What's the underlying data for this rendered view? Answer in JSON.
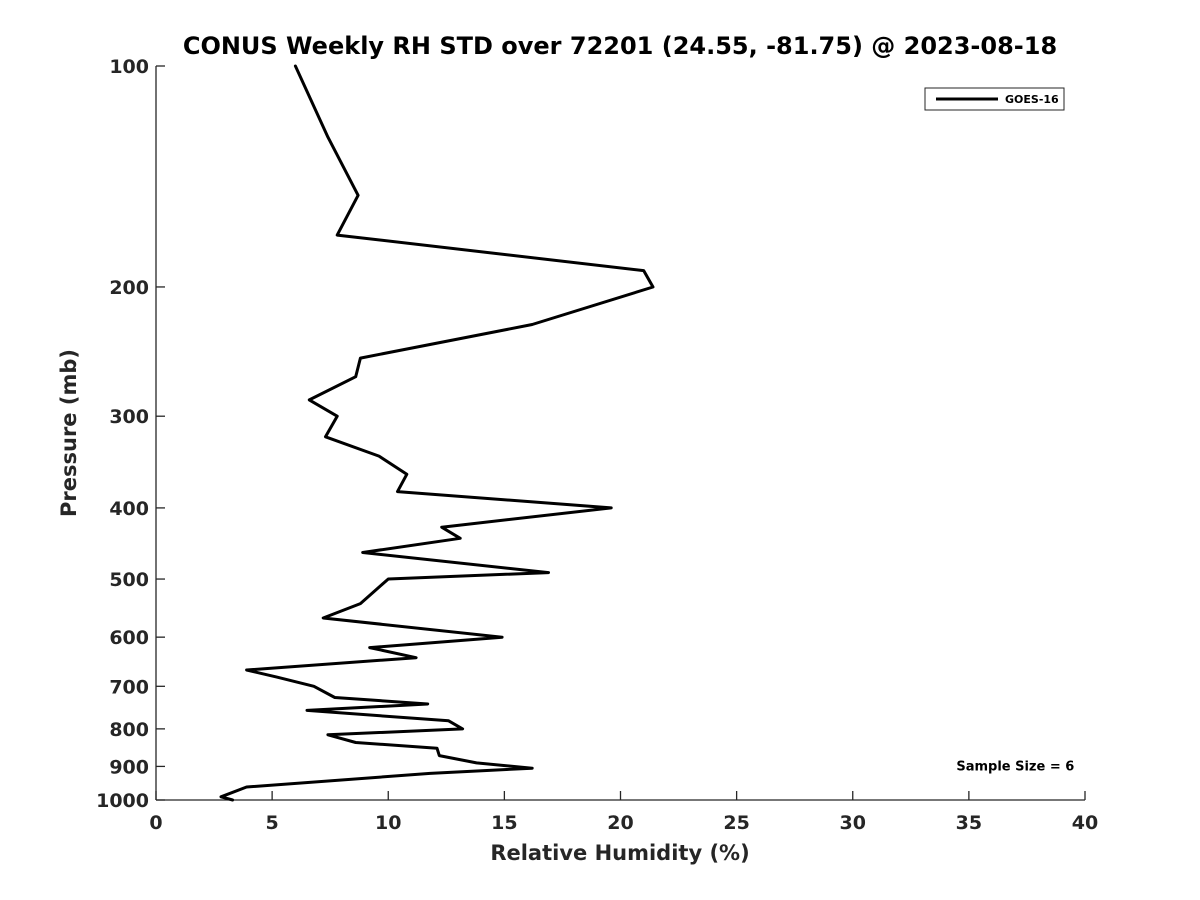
{
  "chart_data": {
    "type": "line",
    "title": "CONUS Weekly RH STD over 72201 (24.55, -81.75) @ 2023-08-18",
    "xlabel": "Relative Humidity (%)",
    "ylabel": "Pressure (mb)",
    "xlim": [
      0,
      40
    ],
    "ylim": [
      100,
      1000
    ],
    "yscale": "log",
    "yreversed": true,
    "grid": false,
    "legend_position": "top-right",
    "xticks": [
      0,
      5,
      10,
      15,
      20,
      25,
      30,
      35,
      40
    ],
    "xtick_labels": [
      "0",
      "5",
      "10",
      "15",
      "20",
      "25",
      "30",
      "35",
      "40"
    ],
    "yticks": [
      100,
      200,
      300,
      400,
      500,
      600,
      700,
      800,
      900,
      1000
    ],
    "ytick_labels": [
      "100",
      "200",
      "300",
      "400",
      "500",
      "600",
      "700",
      "800",
      "900",
      "1000"
    ],
    "series": [
      {
        "name": "GOES-16",
        "color": "#000000",
        "points": [
          [
            6.0,
            100
          ],
          [
            7.4,
            125
          ],
          [
            8.7,
            150
          ],
          [
            7.8,
            170
          ],
          [
            21.0,
            190
          ],
          [
            21.4,
            200
          ],
          [
            16.2,
            225
          ],
          [
            8.8,
            250
          ],
          [
            8.6,
            265
          ],
          [
            6.6,
            285
          ],
          [
            7.8,
            300
          ],
          [
            7.3,
            320
          ],
          [
            9.6,
            340
          ],
          [
            10.8,
            360
          ],
          [
            10.4,
            380
          ],
          [
            19.6,
            400
          ],
          [
            12.3,
            425
          ],
          [
            13.1,
            440
          ],
          [
            8.9,
            460
          ],
          [
            16.9,
            490
          ],
          [
            10.0,
            500
          ],
          [
            8.8,
            540
          ],
          [
            7.2,
            565
          ],
          [
            14.9,
            600
          ],
          [
            9.2,
            620
          ],
          [
            11.2,
            640
          ],
          [
            3.9,
            665
          ],
          [
            5.2,
            680
          ],
          [
            6.8,
            700
          ],
          [
            7.7,
            725
          ],
          [
            11.7,
            740
          ],
          [
            6.5,
            755
          ],
          [
            12.6,
            780
          ],
          [
            13.2,
            800
          ],
          [
            7.4,
            815
          ],
          [
            8.6,
            835
          ],
          [
            12.1,
            850
          ],
          [
            12.2,
            870
          ],
          [
            13.8,
            890
          ],
          [
            16.2,
            905
          ],
          [
            11.8,
            920
          ],
          [
            3.9,
            960
          ],
          [
            2.8,
            990
          ],
          [
            3.3,
            1000
          ]
        ]
      }
    ],
    "annotations": [
      {
        "text": "Sample Size = 6",
        "x": 37,
        "y": 900
      }
    ]
  }
}
